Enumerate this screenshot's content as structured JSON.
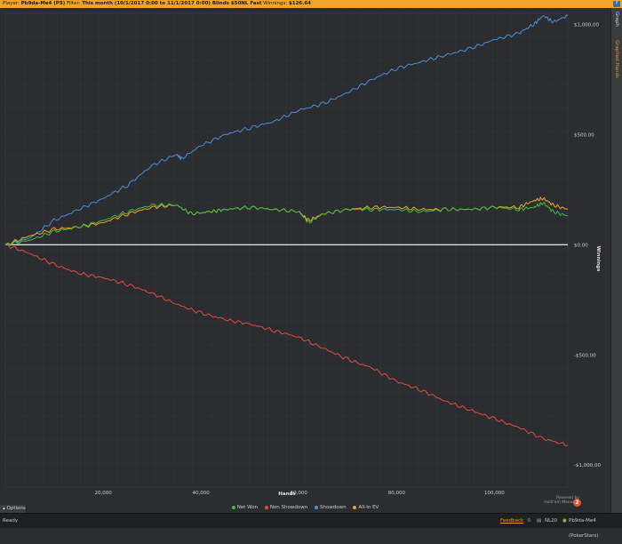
{
  "header": {
    "player_label": "Player:",
    "player_value": "Pb9da-Me4 (PS)",
    "filter_label": "Filter:",
    "filter_value": "This month (10/1/2017 0:00 to 11/1/2017 0:00) Blinds $50NL Fast",
    "winnings_label": "Winnings:",
    "winnings_value": "$126.64",
    "help_icon": "?"
  },
  "sidebar": {
    "tabs": [
      {
        "label": "Graph"
      },
      {
        "label": "Graphed Hands"
      }
    ]
  },
  "legend": {
    "items": [
      {
        "name": "Net Won",
        "color": "#3fbf3f"
      },
      {
        "name": "Non Showdown",
        "color": "#e54b40"
      },
      {
        "name": "Showdown",
        "color": "#4b8fd6"
      },
      {
        "name": "All-In EV",
        "color": "#f0a428"
      }
    ]
  },
  "options_label": "Options",
  "logo": {
    "line1": "Powered by",
    "line2": "Hold'em Manager",
    "badge": "2"
  },
  "statusbar": {
    "status": "Ready",
    "feedback": "Feedback",
    "stakes": "NL20",
    "player": "Pb9da-Me4 (PokerStars)"
  },
  "chart_data": {
    "type": "line",
    "xlabel": "Hands",
    "ylabel": "Winnings",
    "xlim": [
      0,
      115000
    ],
    "ylim": [
      -1100,
      1050
    ],
    "x_ticks": [
      20000,
      40000,
      60000,
      80000,
      100000
    ],
    "x_tick_labels": [
      "20,000",
      "40,000",
      "60,000",
      "80,000",
      "100,000"
    ],
    "y_ticks": [
      1000,
      500,
      0,
      -500,
      -1000
    ],
    "y_tick_labels": [
      "$1,000.00",
      "$500.00",
      "$0.00",
      "-$500.00",
      "-$1,000.00"
    ],
    "grid": true,
    "legend_position": "bottom",
    "series": [
      {
        "name": "Showdown",
        "color": "#4b8fd6",
        "x": [
          0,
          5000,
          10000,
          15000,
          20000,
          25000,
          30000,
          35000,
          36000,
          40000,
          45000,
          50000,
          55000,
          60000,
          65000,
          70000,
          75000,
          80000,
          85000,
          90000,
          95000,
          100000,
          105000,
          108000,
          110000,
          112000,
          115000
        ],
        "values": [
          0,
          30,
          110,
          160,
          210,
          270,
          360,
          410,
          390,
          450,
          500,
          530,
          560,
          610,
          640,
          690,
          750,
          800,
          830,
          860,
          890,
          930,
          960,
          1000,
          1040,
          1010,
          1040
        ]
      },
      {
        "name": "All-In EV",
        "color": "#f0a428",
        "x": [
          0,
          5000,
          10000,
          15000,
          20000,
          25000,
          30000,
          35000,
          38000,
          42000,
          45000,
          50000,
          55000,
          60000,
          62000,
          65000,
          70000,
          75000,
          80000,
          85000,
          90000,
          95000,
          100000,
          105000,
          108000,
          110000,
          112000,
          115000
        ],
        "values": [
          0,
          40,
          70,
          80,
          100,
          140,
          170,
          180,
          140,
          150,
          160,
          170,
          160,
          150,
          110,
          140,
          160,
          170,
          170,
          160,
          160,
          160,
          170,
          170,
          200,
          210,
          180,
          160
        ]
      },
      {
        "name": "Net Won",
        "color": "#3fbf3f",
        "x": [
          0,
          5000,
          10000,
          15000,
          20000,
          25000,
          30000,
          35000,
          38000,
          42000,
          45000,
          50000,
          55000,
          60000,
          62000,
          65000,
          70000,
          75000,
          80000,
          85000,
          90000,
          95000,
          100000,
          105000,
          108000,
          110000,
          112000,
          115000
        ],
        "values": [
          0,
          20,
          60,
          80,
          110,
          150,
          180,
          180,
          140,
          150,
          160,
          170,
          160,
          150,
          100,
          140,
          160,
          160,
          160,
          150,
          160,
          160,
          170,
          160,
          170,
          190,
          150,
          130
        ]
      },
      {
        "name": "Non Showdown",
        "color": "#e54b40",
        "x": [
          0,
          5000,
          10000,
          15000,
          20000,
          25000,
          30000,
          35000,
          40000,
          45000,
          50000,
          55000,
          60000,
          65000,
          70000,
          75000,
          80000,
          85000,
          90000,
          95000,
          100000,
          105000,
          110000,
          115000
        ],
        "values": [
          0,
          -40,
          -90,
          -130,
          -150,
          -180,
          -220,
          -270,
          -310,
          -340,
          -360,
          -390,
          -420,
          -470,
          -520,
          -560,
          -620,
          -660,
          -710,
          -750,
          -790,
          -830,
          -880,
          -910
        ]
      }
    ]
  }
}
